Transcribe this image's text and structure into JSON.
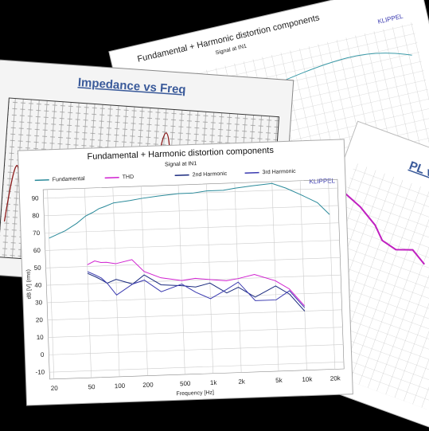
{
  "background_cards": {
    "impedance_title": "Impedance vs Freq",
    "distortion_title": "Fundamental + Harmonic distortion components",
    "distortion_subtitle": "Signal at IN1",
    "distortion_brand": "KLIPPEL",
    "spl_title": "PL vs Freq"
  },
  "chart_data": {
    "type": "line",
    "title": "Fundamental + Harmonic distortion components",
    "subtitle": "Signal at IN1",
    "annotation": "KLIPPEL",
    "x_label": "Frequency [Hz]",
    "y_label": "dB [V] (rms)",
    "log_x": true,
    "grid": true,
    "x": [
      20,
      30,
      40,
      50,
      60,
      70,
      80,
      100,
      150,
      200,
      300,
      500,
      700,
      1000,
      1500,
      2000,
      3000,
      5000,
      7000,
      10000,
      15000,
      20000
    ],
    "series": [
      {
        "name": "Fundamental",
        "color": "#2a8a9a",
        "values": [
          67,
          71,
          75,
          79,
          81,
          83,
          84,
          86,
          87,
          88,
          89,
          90,
          90,
          91,
          91,
          92,
          93,
          94,
          91,
          87,
          82,
          75
        ]
      },
      {
        "name": "THD",
        "color": "#d020d0",
        "values": [
          null,
          null,
          null,
          51,
          53,
          52,
          52,
          51,
          53,
          46,
          42,
          40,
          41,
          40,
          39,
          40,
          42,
          38,
          33,
          23,
          null,
          null
        ]
      },
      {
        "name": "2nd Harmonic",
        "color": "#1a2a7e",
        "values": [
          null,
          null,
          null,
          46,
          44,
          42,
          40,
          42,
          39,
          44,
          38,
          37,
          36,
          38,
          32,
          35,
          29,
          35,
          30,
          20,
          null,
          null
        ]
      },
      {
        "name": "3rd Harmonic",
        "color": "#3a3ab0",
        "values": [
          null,
          null,
          null,
          47,
          45,
          43,
          40,
          33,
          39,
          41,
          34,
          38,
          33,
          29,
          34,
          38,
          27,
          27,
          32,
          22,
          null,
          null
        ]
      }
    ],
    "xlim": [
      18,
      25000
    ],
    "xticks": [
      20,
      50,
      100,
      200,
      500,
      {
        "value": 1000,
        "label": "1k"
      },
      {
        "value": 2000,
        "label": "2k"
      },
      {
        "value": 5000,
        "label": "5k"
      },
      {
        "value": 10000,
        "label": "10k"
      },
      {
        "value": 20000,
        "label": "20k"
      }
    ],
    "ylim": [
      -14,
      95
    ],
    "yticks": [
      -10,
      0,
      10,
      20,
      30,
      40,
      50,
      60,
      70,
      80,
      90
    ]
  }
}
